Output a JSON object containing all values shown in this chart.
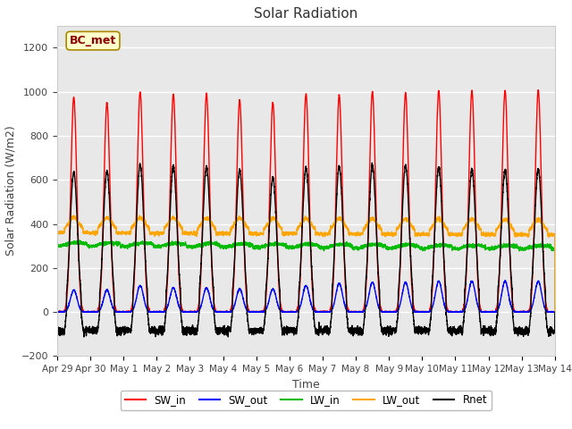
{
  "title": "Solar Radiation",
  "xlabel": "Time",
  "ylabel": "Solar Radiation (W/m2)",
  "ylim": [
    -200,
    1300
  ],
  "yticks": [
    -200,
    0,
    200,
    400,
    600,
    800,
    1000,
    1200
  ],
  "figure_bg": "#ffffff",
  "plot_bg": "#e8e8e8",
  "grid_color": "#ffffff",
  "series_colors": {
    "SW_in": "#ff0000",
    "SW_out": "#0000ff",
    "LW_in": "#00bb00",
    "LW_out": "#ffa500",
    "Rnet": "#000000"
  },
  "annotation_text": "BC_met",
  "annotation_color": "#8b0000",
  "annotation_bg": "#ffffcc",
  "annotation_edge": "#aa8800",
  "n_days": 15,
  "xtick_labels": [
    "Apr 29",
    "Apr 30",
    "May 1",
    "May 2",
    "May 3",
    "May 4",
    "May 5",
    "May 6",
    "May 7",
    "May 8",
    "May 9",
    "May 10",
    "May 11",
    "May 12",
    "May 13",
    "May 14"
  ],
  "legend_labels": [
    "SW_in",
    "SW_out",
    "LW_in",
    "LW_out",
    "Rnet"
  ]
}
